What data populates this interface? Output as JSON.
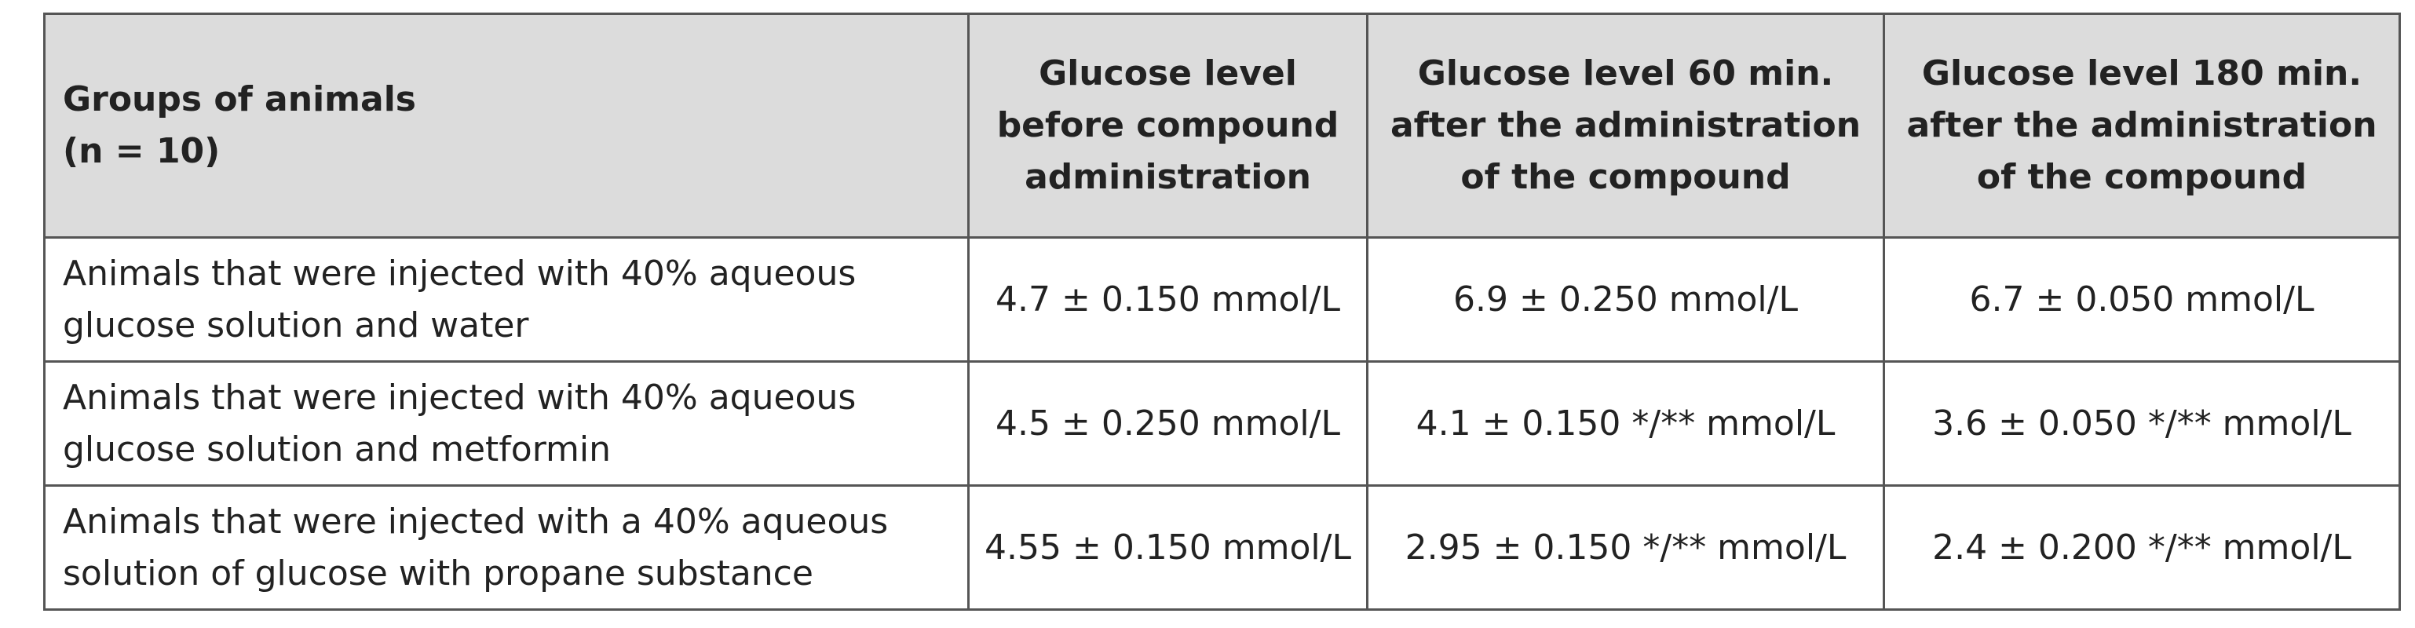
{
  "table": {
    "header": [
      [
        "Groups of animals",
        "(n = 10)"
      ],
      [
        "Glucose level",
        "before compound",
        "administration"
      ],
      [
        "Glucose level 60 min.",
        "after the administration",
        "of the compound"
      ],
      [
        "Glucose level 180 min.",
        "after the administration",
        "of the compound"
      ]
    ],
    "rows": [
      [
        [
          "Animals that were injected with 40% aqueous",
          "glucose solution and water"
        ],
        [
          "4.7 ± 0.150 mmol/L"
        ],
        [
          "6.9 ± 0.250 mmol/L"
        ],
        [
          "6.7 ± 0.050 mmol/L"
        ]
      ],
      [
        [
          "Animals that were injected with 40% aqueous",
          "glucose solution and metformin"
        ],
        [
          "4.5 ± 0.250 mmol/L"
        ],
        [
          "4.1 ± 0.150 */** mmol/L"
        ],
        [
          "3.6 ± 0.050 */** mmol/L"
        ]
      ],
      [
        [
          "Animals that were injected with a 40% aqueous",
          "solution of glucose with propane substance"
        ],
        [
          "4.55 ± 0.150 mmol/L"
        ],
        [
          "2.95 ± 0.150 */** mmol/L"
        ],
        [
          "2.4 ± 0.200 */** mmol/L"
        ]
      ]
    ]
  }
}
